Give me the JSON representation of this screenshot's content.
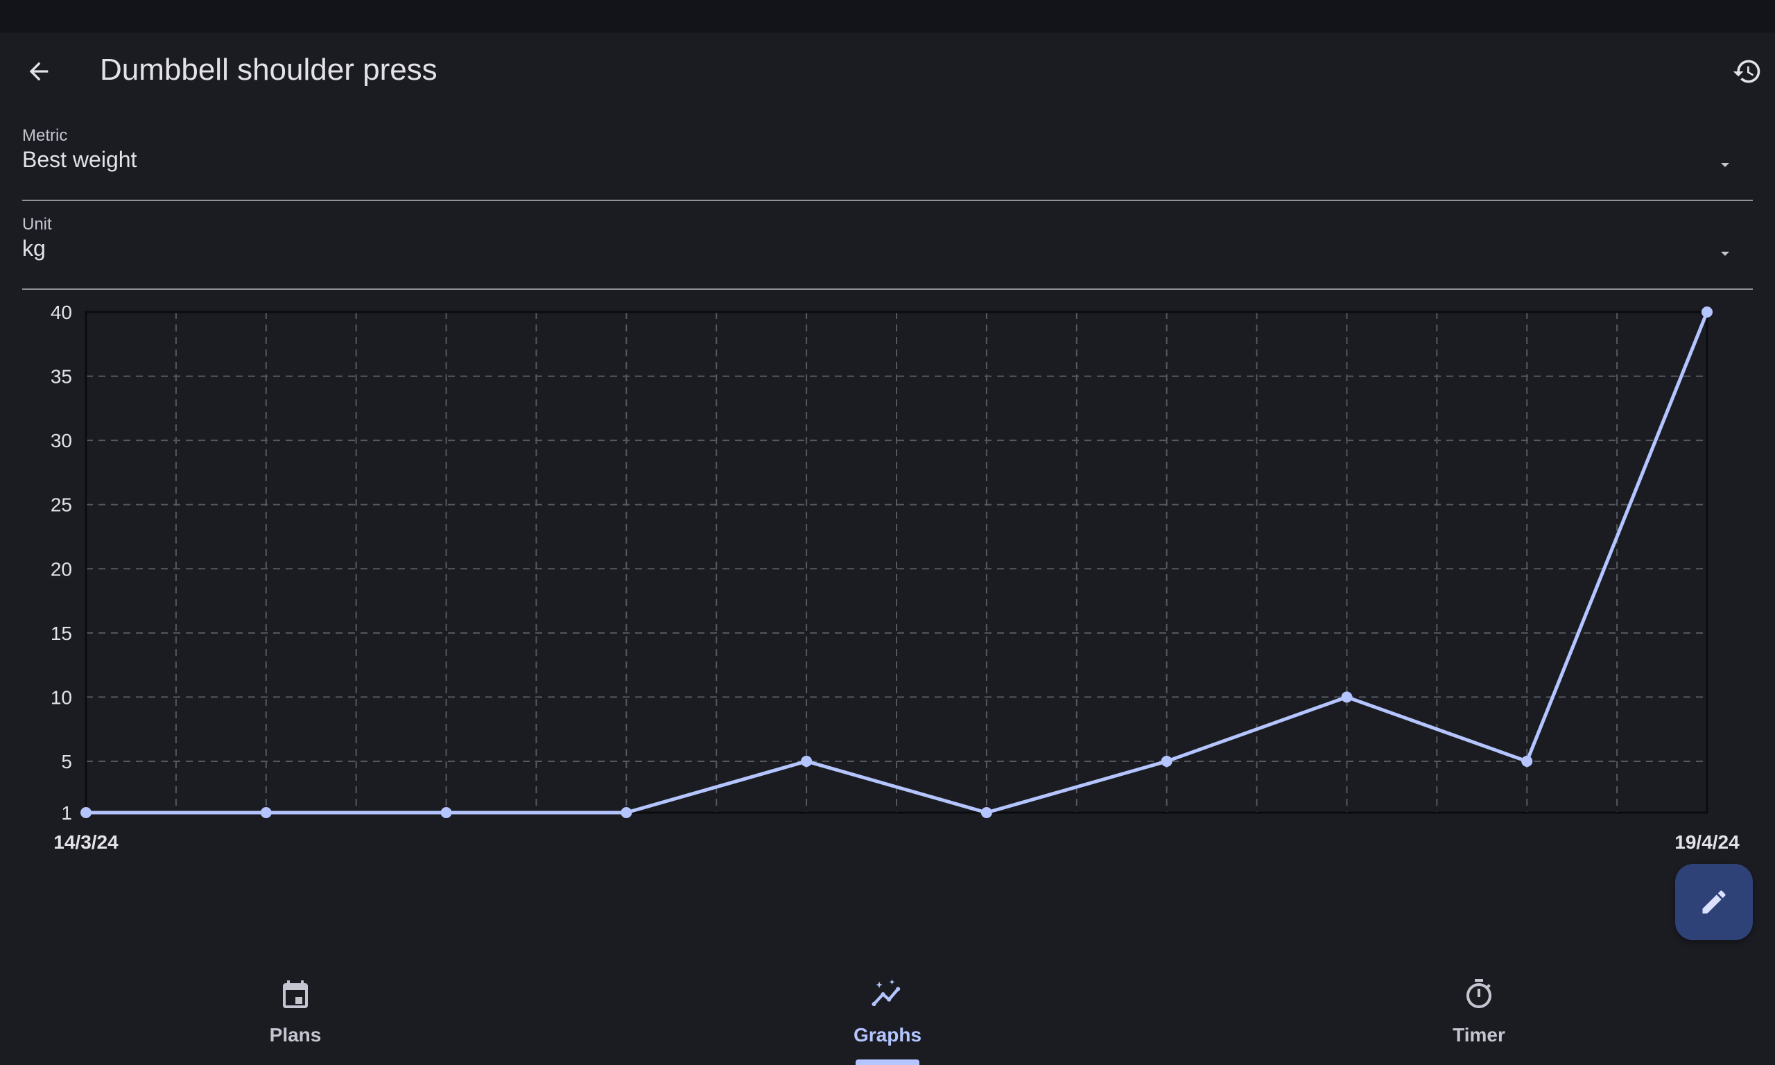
{
  "app": {
    "title": "Dumbbell shoulder press",
    "back_icon": "arrow-back-icon",
    "history_icon": "history-icon"
  },
  "metric": {
    "label": "Metric",
    "value": "Best weight"
  },
  "unit": {
    "label": "Unit",
    "value": "kg"
  },
  "chart_data": {
    "type": "line",
    "x_start_label": "14/3/24",
    "x_end_label": "19/4/24",
    "x": [
      0,
      2,
      4,
      6,
      8,
      10,
      12,
      14,
      16,
      18
    ],
    "values": [
      1,
      1,
      1,
      1,
      5,
      1,
      5,
      10,
      5,
      40
    ],
    "xlim": [
      0,
      18
    ],
    "ylim": [
      1,
      40
    ],
    "y_ticks": [
      1,
      5,
      10,
      15,
      20,
      25,
      30,
      35,
      40
    ],
    "grid": true,
    "colors": {
      "line": "#b4c5ff",
      "grid": "#555861"
    }
  },
  "fab": {
    "icon": "pencil-icon"
  },
  "nav": {
    "items": [
      {
        "label": "Plans",
        "icon": "calendar-icon"
      },
      {
        "label": "Graphs",
        "icon": "graph-icon"
      },
      {
        "label": "Timer",
        "icon": "timer-icon"
      }
    ],
    "active": "Graphs"
  },
  "colors": {
    "background": "#1b1c22",
    "accent": "#b4c5ff",
    "fab": "#2f4277"
  }
}
